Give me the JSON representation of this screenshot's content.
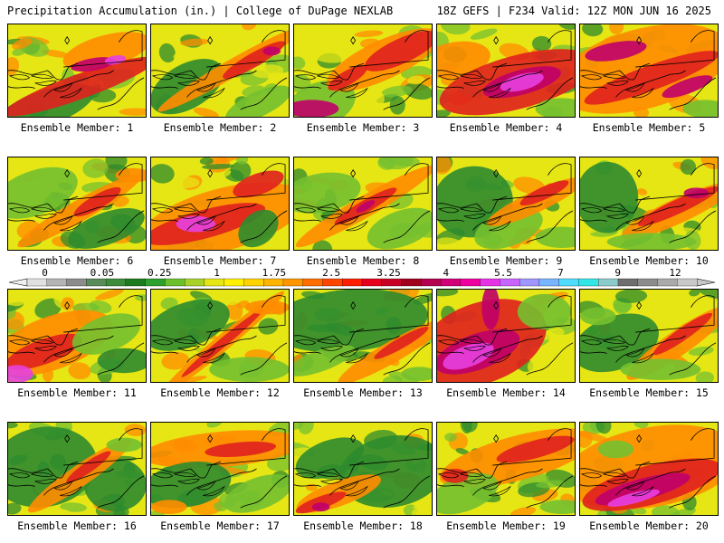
{
  "header": {
    "left": "Precipitation Accumulation (in.) | College of DuPage NEXLAB",
    "right": "18Z GEFS | F234 Valid: 12Z MON JUN 16 2025"
  },
  "members": [
    {
      "label": "Ensemble Member: 1",
      "pattern": "band-center"
    },
    {
      "label": "Ensemble Member: 2",
      "pattern": "diagonal-upper"
    },
    {
      "label": "Ensemble Member: 3",
      "pattern": "wet-east"
    },
    {
      "label": "Ensemble Member: 4",
      "pattern": "core-center"
    },
    {
      "label": "Ensemble Member: 5",
      "pattern": "wet-wide"
    },
    {
      "label": "Ensemble Member: 6",
      "pattern": "mixed-dry"
    },
    {
      "label": "Ensemble Member: 7",
      "pattern": "wet-south"
    },
    {
      "label": "Ensemble Member: 8",
      "pattern": "diagonal-center"
    },
    {
      "label": "Ensemble Member: 9",
      "pattern": "dry-west"
    },
    {
      "label": "Ensemble Member: 10",
      "pattern": "dry-west-band"
    },
    {
      "label": "Ensemble Member: 11",
      "pattern": "wet-southwest"
    },
    {
      "label": "Ensemble Member: 12",
      "pattern": "narrow-diagonal"
    },
    {
      "label": "Ensemble Member: 13",
      "pattern": "dry-north"
    },
    {
      "label": "Ensemble Member: 14",
      "pattern": "core-southwest"
    },
    {
      "label": "Ensemble Member: 15",
      "pattern": "band-northeast"
    },
    {
      "label": "Ensemble Member: 16",
      "pattern": "dry-wide"
    },
    {
      "label": "Ensemble Member: 17",
      "pattern": "wet-north"
    },
    {
      "label": "Ensemble Member: 18",
      "pattern": "dry-east"
    },
    {
      "label": "Ensemble Member: 19",
      "pattern": "wet-northeast"
    },
    {
      "label": "Ensemble Member: 20",
      "pattern": "core-south-wide"
    }
  ],
  "colorbar": {
    "unit": "in.",
    "tick_labels": [
      "0",
      "0.05",
      "0.25",
      "1",
      "1.75",
      "2.5",
      "3.25",
      "4",
      "5.5",
      "7",
      "9",
      "12"
    ],
    "colors": [
      "#e0e0e0",
      "#b4b4b4",
      "#8c8c8c",
      "#5a8c5a",
      "#3c8c3c",
      "#1e7a1e",
      "#2ea02e",
      "#6cc02e",
      "#a8d22a",
      "#e6e614",
      "#fff000",
      "#ffd200",
      "#ffb400",
      "#ff9600",
      "#ff6e00",
      "#ff4600",
      "#ff1e00",
      "#e6001e",
      "#c80028",
      "#a0001e",
      "#b40050",
      "#d20078",
      "#f000a0",
      "#e632e6",
      "#c864ff",
      "#a096ff",
      "#78b4ff",
      "#50dcff",
      "#32e6e6",
      "#8ccccc",
      "#6e6e6e",
      "#8c8c8c",
      "#aaaaaa",
      "#c8c8c8"
    ]
  },
  "map_colors": {
    "dry": "#2e8b2e",
    "light": "#74c030",
    "moderate": "#e6e614",
    "heavy": "#ff8c00",
    "very_heavy": "#e0201e",
    "extreme": "#c0006a",
    "max": "#e840e0"
  },
  "overlay_icons": [
    "state-borders-overlay",
    "lake-outlines-overlay",
    "city-marker-icon"
  ]
}
